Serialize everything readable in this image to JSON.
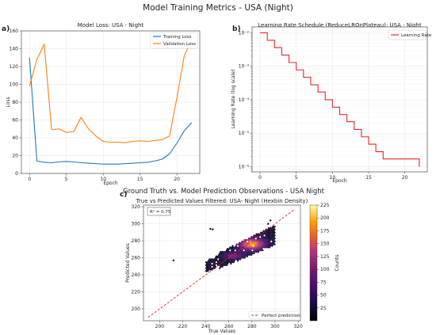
{
  "figure": {
    "title": "Model Training Metrics - USA (Night)",
    "section_title": "Ground Truth vs. Model Prediction Observations - USA Night"
  },
  "chart_data": [
    {
      "type": "line",
      "panel_label": "a)",
      "title": "Model Loss: USA - Night",
      "xlabel": "Epoch",
      "ylabel": "Loss",
      "xlim": [
        -1.1,
        23.1
      ],
      "ylim": [
        0,
        160
      ],
      "xticks": [
        0,
        5,
        10,
        15,
        20
      ],
      "yticks": [
        0,
        20,
        40,
        60,
        80,
        100,
        120,
        140,
        160
      ],
      "grid": true,
      "legend": "top-right",
      "series": [
        {
          "name": "Training Loss",
          "color": "#1f77b4",
          "x": [
            0,
            1,
            2,
            3,
            4,
            5,
            6,
            7,
            8,
            9,
            10,
            11,
            12,
            13,
            14,
            15,
            16,
            17,
            18,
            19,
            20,
            21,
            22
          ],
          "values": [
            130,
            14,
            12.5,
            12,
            13,
            13.5,
            13,
            12,
            11.5,
            11,
            10.5,
            10.5,
            10.5,
            11,
            11.5,
            12,
            12.5,
            14,
            16,
            22,
            34,
            48,
            57
          ]
        },
        {
          "name": "Validation Loss",
          "color": "#ff7f0e",
          "x": [
            0,
            1,
            2,
            3,
            4,
            5,
            6,
            7,
            8,
            9,
            10,
            11,
            12,
            13,
            14,
            15,
            16,
            17,
            18,
            19,
            20,
            21,
            22
          ],
          "values": [
            98,
            128,
            145,
            49,
            50,
            46,
            47,
            63,
            50,
            42,
            36,
            35,
            35,
            34.5,
            36,
            36.5,
            36,
            37,
            38,
            42,
            85,
            132,
            150
          ]
        }
      ]
    },
    {
      "type": "line",
      "panel_label": "b)",
      "title": "Learning Rate Schedule (ReduceLROnPlateau): USA - Night",
      "xlabel": "Epoch",
      "ylabel": "Learning Rate (log scale)",
      "yscale": "log",
      "xlim": [
        -1.1,
        23.1
      ],
      "ylim": [
        7e-07,
        0.015
      ],
      "xticks": [
        0,
        5,
        10,
        15,
        20
      ],
      "ytick_values": [
        1e-06,
        1e-05,
        0.0001,
        0.001,
        0.01
      ],
      "ytick_labels": [
        "10⁻⁶",
        "10⁻⁵",
        "10⁻⁴",
        "10⁻³",
        "10⁻²"
      ],
      "grid": true,
      "legend": "top-right",
      "series": [
        {
          "name": "Learning Rate",
          "color": "#e8262a",
          "x": [
            0,
            1,
            2,
            3,
            4,
            5,
            6,
            7,
            8,
            9,
            10,
            11,
            12,
            13,
            14,
            15,
            16,
            17,
            18,
            19,
            20,
            21,
            22
          ],
          "values": [
            0.01,
            0.006,
            0.0036,
            0.00216,
            0.0013,
            0.00078,
            0.00047,
            0.00028,
            0.00017,
            0.0001,
            6e-05,
            3.6e-05,
            2.2e-05,
            1.3e-05,
            7.8e-06,
            4.7e-06,
            2.8e-06,
            1.7e-06,
            1.7e-06,
            1.7e-06,
            1.7e-06,
            1.7e-06,
            1e-06
          ]
        }
      ]
    },
    {
      "type": "heatmap",
      "subtype": "hexbin",
      "panel_label": "c)",
      "title": "True vs Predicted Values Filtered: USA- Night (Hexbin Density)",
      "xlabel": "True Values",
      "ylabel": "Predicted Values",
      "xlim": [
        186,
        322
      ],
      "ylim": [
        186,
        322
      ],
      "xticks": [
        200,
        220,
        240,
        260,
        280,
        300,
        320
      ],
      "yticks": [
        200,
        220,
        240,
        260,
        280,
        300,
        320
      ],
      "grid": true,
      "annotation": "R² = 0.75",
      "reference_line": {
        "name": "Perfect prediction",
        "color": "#e8262a",
        "from": [
          190,
          190
        ],
        "to": [
          317,
          317
        ]
      },
      "legend": "bottom-right",
      "colorbar": {
        "label": "Counts",
        "min": 0,
        "max": 225,
        "ticks": [
          25,
          50,
          75,
          100,
          125,
          150,
          175,
          200,
          225
        ],
        "colormap": "inferno"
      },
      "density_core": {
        "x_range": [
          240,
          300
        ],
        "y_range": [
          248,
          300
        ],
        "peak": [
          280,
          276
        ]
      }
    }
  ]
}
